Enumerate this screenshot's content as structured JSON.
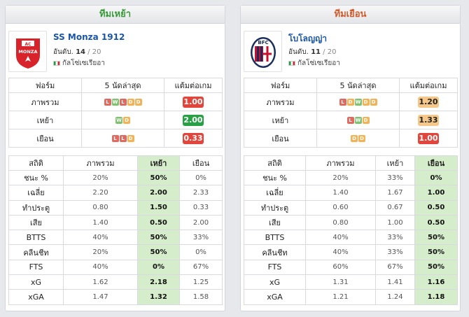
{
  "home": {
    "header": "ทีมเหย้า",
    "team_name": "SS Monza 1912",
    "rank_label": "อันดับ.",
    "rank": "14",
    "rank_total": "20",
    "league": "กัลโซ่เซเรียอา",
    "form_headers": [
      "ฟอร์ม",
      "5 นัดล่าสุด",
      "แต้มต่อเกม"
    ],
    "form_rows": [
      {
        "label": "ภาพรวม",
        "results": [
          "L",
          "W",
          "L",
          "D",
          "D"
        ],
        "ppg": "1.00",
        "ppg_color": "red"
      },
      {
        "label": "เหย้า",
        "results": [
          "W",
          "D"
        ],
        "ppg": "2.00",
        "ppg_color": "green"
      },
      {
        "label": "เยือน",
        "results": [
          "L",
          "L",
          "D"
        ],
        "ppg": "0.33",
        "ppg_color": "red"
      }
    ],
    "stats_headers": [
      "สถิติ",
      "ภาพรวม",
      "เหย้า",
      "เยือน"
    ],
    "stats_rows": [
      [
        "ชนะ %",
        "20%",
        "50%",
        "0%"
      ],
      [
        "เฉลี่ย",
        "2.20",
        "2.00",
        "2.33"
      ],
      [
        "ทำประตู",
        "0.80",
        "1.50",
        "0.33"
      ],
      [
        "เสีย",
        "1.40",
        "0.50",
        "2.00"
      ],
      [
        "BTTS",
        "40%",
        "50%",
        "33%"
      ],
      [
        "คลีนชีท",
        "20%",
        "50%",
        "0%"
      ],
      [
        "FTS",
        "40%",
        "0%",
        "67%"
      ],
      [
        "xG",
        "1.62",
        "2.18",
        "1.25"
      ],
      [
        "xGA",
        "1.47",
        "1.32",
        "1.58"
      ]
    ]
  },
  "away": {
    "header": "ทีมเยือน",
    "team_name": "โบโลญญ่า",
    "rank_label": "อันดับ.",
    "rank": "11",
    "rank_total": "20",
    "league": "กัลโซ่เซเรียอา",
    "form_headers": [
      "ฟอร์ม",
      "5 นัดล่าสุด",
      "แต้มต่อเกม"
    ],
    "form_rows": [
      {
        "label": "ภาพรวม",
        "results": [
          "L",
          "D",
          "W",
          "D",
          "D"
        ],
        "ppg": "1.20",
        "ppg_color": "peach"
      },
      {
        "label": "เหย้า",
        "results": [
          "L",
          "W",
          "D"
        ],
        "ppg": "1.33",
        "ppg_color": "peach"
      },
      {
        "label": "เยือน",
        "results": [
          "D",
          "D"
        ],
        "ppg": "1.00",
        "ppg_color": "red"
      }
    ],
    "stats_headers": [
      "สถิติ",
      "ภาพรวม",
      "เหย้า",
      "เยือน"
    ],
    "stats_rows": [
      [
        "ชนะ %",
        "20%",
        "33%",
        "0%"
      ],
      [
        "เฉลี่ย",
        "1.40",
        "1.67",
        "1.00"
      ],
      [
        "ทำประตู",
        "0.60",
        "0.67",
        "0.50"
      ],
      [
        "เสีย",
        "0.80",
        "1.00",
        "0.50"
      ],
      [
        "BTTS",
        "40%",
        "33%",
        "50%"
      ],
      [
        "คลีนชีท",
        "40%",
        "33%",
        "50%"
      ],
      [
        "FTS",
        "60%",
        "67%",
        "50%"
      ],
      [
        "xG",
        "1.31",
        "1.41",
        "1.16"
      ],
      [
        "xGA",
        "1.21",
        "1.24",
        "1.18"
      ]
    ]
  },
  "icons": {
    "home_logo": "monza-crest-icon",
    "away_logo": "bologna-crest-icon",
    "flag": "italy-flag-icon"
  },
  "colors": {
    "loss": "#e06a5f",
    "win": "#7cc46e",
    "draw": "#f1b356",
    "ppg_red": "#e2453b",
    "ppg_green": "#27a144",
    "ppg_peach": "#f5c88a",
    "highlight": "#d6edcc"
  }
}
